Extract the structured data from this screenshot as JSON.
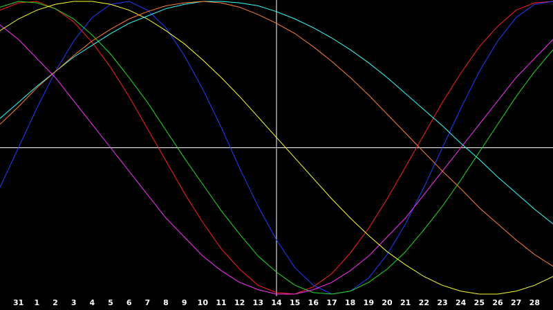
{
  "chart_data": {
    "type": "line",
    "categories": [
      null,
      "31",
      "1",
      "2",
      "3",
      "4",
      "5",
      "6",
      "7",
      "8",
      "9",
      "10",
      "11",
      "12",
      "13",
      "14",
      "15",
      "16",
      "17",
      "18",
      "19",
      "20",
      "21",
      "22",
      "23",
      "24",
      "25",
      "26",
      "27",
      "28",
      null
    ],
    "ylim": [
      -100,
      100
    ],
    "marker_category": 15,
    "background": "#000000",
    "series": [
      {
        "color": "#ff2020",
        "values": [
          94,
          99,
          100,
          95,
          86,
          72,
          55,
          35,
          13,
          -9,
          -31,
          -51,
          -69,
          -83,
          -94,
          -99,
          -100,
          -95,
          -86,
          -72,
          -55,
          -35,
          -13,
          9,
          31,
          51,
          69,
          83,
          94,
          99,
          100
        ]
      },
      {
        "color": "#2040ff",
        "values": [
          -27,
          0,
          27,
          52,
          73,
          89,
          98,
          100,
          94,
          82,
          63,
          40,
          14,
          -14,
          -40,
          -63,
          -82,
          -94,
          -100,
          -98,
          -89,
          -73,
          -52,
          -27,
          0,
          27,
          52,
          73,
          89,
          98,
          100
        ]
      },
      {
        "color": "#20e020",
        "values": [
          96,
          100,
          99,
          95,
          88,
          77,
          64,
          48,
          31,
          12,
          -7,
          -25,
          -43,
          -59,
          -74,
          -85,
          -94,
          -99,
          -100,
          -98,
          -92,
          -83,
          -71,
          -56,
          -40,
          -22,
          -3,
          16,
          35,
          52,
          67
        ]
      },
      {
        "color": "#ff30ff",
        "values": [
          84,
          74,
          61,
          48,
          32,
          16,
          0,
          -16,
          -32,
          -48,
          -61,
          -74,
          -84,
          -92,
          -97,
          -100,
          -100,
          -97,
          -92,
          -84,
          -74,
          -61,
          -48,
          -32,
          -16,
          0,
          16,
          32,
          48,
          61,
          74
        ]
      },
      {
        "color": "#ffff30",
        "values": [
          80,
          88,
          94,
          98,
          100,
          100,
          98,
          94,
          88,
          80,
          71,
          60,
          48,
          35,
          21,
          7,
          -7,
          -21,
          -35,
          -48,
          -60,
          -71,
          -80,
          -88,
          -94,
          -98,
          -100,
          -100,
          -98,
          -94,
          -88
        ]
      },
      {
        "color": "#30ffff",
        "values": [
          20,
          31,
          42,
          52,
          62,
          70,
          78,
          85,
          90,
          95,
          98,
          100,
          100,
          99,
          97,
          93,
          88,
          82,
          75,
          67,
          58,
          48,
          37,
          26,
          15,
          3,
          -8,
          -20,
          -31,
          -42,
          -52
        ]
      },
      {
        "color": "#ff8030",
        "values": [
          16,
          28,
          41,
          52,
          63,
          73,
          81,
          88,
          93,
          97,
          99,
          100,
          99,
          96,
          91,
          85,
          78,
          69,
          59,
          48,
          36,
          23,
          10,
          -3,
          -16,
          -28,
          -41,
          -52,
          -63,
          -73,
          -81
        ]
      }
    ]
  }
}
